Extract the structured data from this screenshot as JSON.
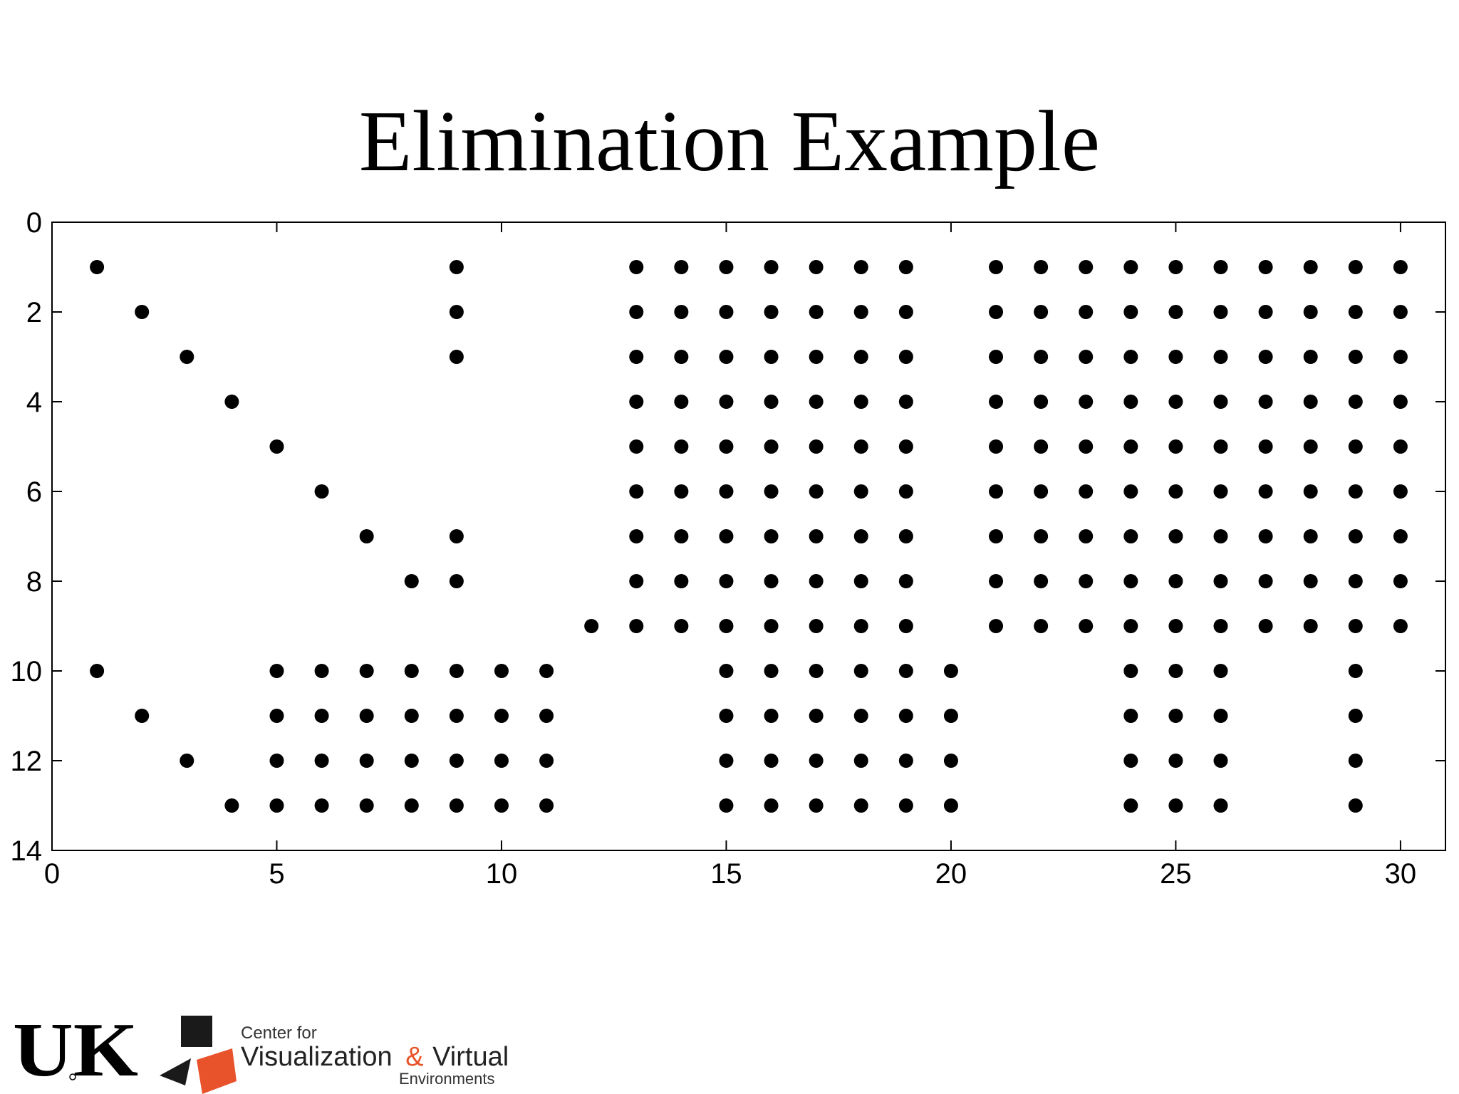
{
  "slide": {
    "title": "Elimination Example"
  },
  "logos": {
    "uk": "UK",
    "cvve": {
      "line1": "Center for",
      "line2a": "Visualization",
      "ampersand": "&",
      "line2b": "Virtual",
      "line3": "Environments"
    }
  },
  "colors": {
    "text": "#000000",
    "accent": "#e8532b",
    "marker": "#000000"
  },
  "chart_data": {
    "type": "scatter",
    "title": "",
    "xlabel": "",
    "ylabel": "",
    "xlim": [
      0,
      31
    ],
    "ylim": [
      0,
      14
    ],
    "y_reversed": true,
    "grid": false,
    "x_ticks": [
      0,
      5,
      10,
      15,
      20,
      25,
      30
    ],
    "y_ticks": [
      0,
      2,
      4,
      6,
      8,
      10,
      12,
      14
    ],
    "marker": "filled-circle",
    "rows": [
      {
        "y": 1,
        "x": [
          1,
          9,
          13,
          14,
          15,
          16,
          17,
          18,
          19,
          21,
          22,
          23,
          24,
          25,
          26,
          27,
          28,
          29,
          30
        ]
      },
      {
        "y": 2,
        "x": [
          2,
          9,
          13,
          14,
          15,
          16,
          17,
          18,
          19,
          21,
          22,
          23,
          24,
          25,
          26,
          27,
          28,
          29,
          30
        ]
      },
      {
        "y": 3,
        "x": [
          3,
          9,
          13,
          14,
          15,
          16,
          17,
          18,
          19,
          21,
          22,
          23,
          24,
          25,
          26,
          27,
          28,
          29,
          30
        ]
      },
      {
        "y": 4,
        "x": [
          4,
          13,
          14,
          15,
          16,
          17,
          18,
          19,
          21,
          22,
          23,
          24,
          25,
          26,
          27,
          28,
          29,
          30
        ]
      },
      {
        "y": 5,
        "x": [
          5,
          13,
          14,
          15,
          16,
          17,
          18,
          19,
          21,
          22,
          23,
          24,
          25,
          26,
          27,
          28,
          29,
          30
        ]
      },
      {
        "y": 6,
        "x": [
          6,
          13,
          14,
          15,
          16,
          17,
          18,
          19,
          21,
          22,
          23,
          24,
          25,
          26,
          27,
          28,
          29,
          30
        ]
      },
      {
        "y": 7,
        "x": [
          7,
          9,
          13,
          14,
          15,
          16,
          17,
          18,
          19,
          21,
          22,
          23,
          24,
          25,
          26,
          27,
          28,
          29,
          30
        ]
      },
      {
        "y": 8,
        "x": [
          8,
          9,
          13,
          14,
          15,
          16,
          17,
          18,
          19,
          21,
          22,
          23,
          24,
          25,
          26,
          27,
          28,
          29,
          30
        ]
      },
      {
        "y": 9,
        "x": [
          12,
          13,
          14,
          15,
          16,
          17,
          18,
          19,
          21,
          22,
          23,
          24,
          25,
          26,
          27,
          28,
          29,
          30
        ]
      },
      {
        "y": 10,
        "x": [
          1,
          5,
          6,
          7,
          8,
          9,
          10,
          11,
          15,
          16,
          17,
          18,
          19,
          20,
          24,
          25,
          26,
          29
        ]
      },
      {
        "y": 11,
        "x": [
          2,
          5,
          6,
          7,
          8,
          9,
          10,
          11,
          15,
          16,
          17,
          18,
          19,
          20,
          24,
          25,
          26,
          29
        ]
      },
      {
        "y": 12,
        "x": [
          3,
          5,
          6,
          7,
          8,
          9,
          10,
          11,
          15,
          16,
          17,
          18,
          19,
          20,
          24,
          25,
          26,
          29
        ]
      },
      {
        "y": 13,
        "x": [
          4,
          5,
          6,
          7,
          8,
          9,
          10,
          11,
          15,
          16,
          17,
          18,
          19,
          20,
          24,
          25,
          26,
          29
        ]
      }
    ]
  }
}
